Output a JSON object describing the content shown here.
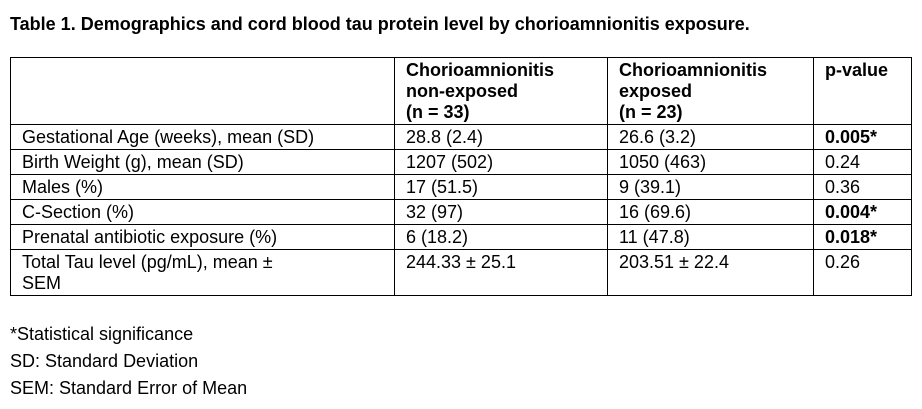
{
  "caption": "Table 1. Demographics and cord blood tau protein level by chorioamnionitis exposure.",
  "table": {
    "headers": [
      {
        "lines": [
          "",
          "",
          ""
        ]
      },
      {
        "lines": [
          "Chorioamnionitis",
          "non-exposed",
          "(n = 33)"
        ]
      },
      {
        "lines": [
          "Chorioamnionitis",
          "exposed",
          "(n = 23)"
        ]
      },
      {
        "lines": [
          "p-value",
          "",
          ""
        ]
      }
    ],
    "rows": [
      {
        "label_lines": [
          "Gestational Age (weeks), mean (SD)"
        ],
        "non_exposed": "28.8 (2.4)",
        "exposed": "26.6 (3.2)",
        "p_value": "0.005*",
        "significant": true
      },
      {
        "label_lines": [
          "Birth Weight (g), mean (SD)"
        ],
        "non_exposed": "1207 (502)",
        "exposed": "1050 (463)",
        "p_value": "0.24",
        "significant": false
      },
      {
        "label_lines": [
          "Males (%)"
        ],
        "non_exposed": "17 (51.5)",
        "exposed": "9 (39.1)",
        "p_value": "0.36",
        "significant": false
      },
      {
        "label_lines": [
          "C-Section (%)"
        ],
        "non_exposed": "32 (97)",
        "exposed": "16 (69.6)",
        "p_value": "0.004*",
        "significant": true
      },
      {
        "label_lines": [
          "Prenatal antibiotic exposure (%)"
        ],
        "non_exposed": "6 (18.2)",
        "exposed": "11 (47.8)",
        "p_value": "0.018*",
        "significant": true
      },
      {
        "label_lines": [
          "Total Tau level (pg/mL), mean ±",
          "SEM"
        ],
        "non_exposed": "244.33 ± 25.1",
        "exposed": "203.51 ± 22.4",
        "p_value": "0.26",
        "significant": false
      }
    ]
  },
  "footnotes": [
    "*Statistical significance",
    "SD: Standard Deviation",
    "SEM: Standard Error of Mean"
  ]
}
